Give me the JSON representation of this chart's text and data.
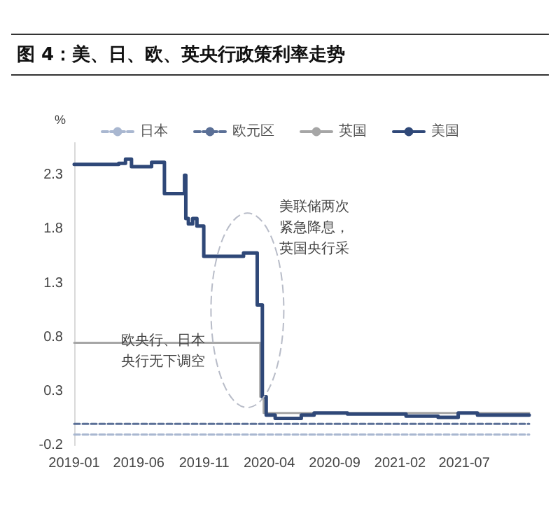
{
  "chart_data": {
    "type": "step",
    "title": "图 4：美、日、欧、英央行政策利率走势",
    "ylabel": "%",
    "annotations": [
      "欧央行、日本央行无下调空",
      "美联储两次紧急降息，英国央行采"
    ],
    "xlim": [
      "2019-01-01",
      "2021-11-30"
    ],
    "xticks": [
      "2019-01",
      "2019-06",
      "2019-11",
      "2020-04",
      "2020-09",
      "2021-02",
      "2021-07"
    ],
    "ylim": [
      -0.2,
      2.6
    ],
    "yticks": [
      -0.2,
      0.3,
      0.8,
      1.3,
      1.8,
      2.3
    ],
    "grid": false,
    "legend": "top",
    "marker": "none",
    "series": [
      {
        "name": "日本",
        "color": "#a9b7d0",
        "line_style": "dashed",
        "x": [
          "2019-01-01",
          "2021-11-30"
        ],
        "values": [
          -0.1,
          -0.1
        ]
      },
      {
        "name": "欧元区",
        "color": "#5a6f96",
        "line_style": "dashed",
        "x": [
          "2019-01-01",
          "2021-11-30"
        ],
        "values": [
          0,
          0
        ]
      },
      {
        "name": "英国",
        "color": "#a6a6a6",
        "line_style": "solid",
        "x": [
          "2019-01-01",
          "2020-03-11",
          "2020-03-19",
          "2021-11-30"
        ],
        "values": [
          0.75,
          0.25,
          0.1,
          0.1
        ]
      },
      {
        "name": "美国",
        "color": "#2f4878",
        "line_style": "solid",
        "x": [
          "2019-01-01",
          "2019-04-15",
          "2019-05-01",
          "2019-05-15",
          "2019-06-15",
          "2019-07-01",
          "2019-07-31",
          "2019-09-16",
          "2019-09-19",
          "2019-09-25",
          "2019-10-05",
          "2019-10-15",
          "2019-10-31",
          "2020-02-01",
          "2020-03-04",
          "2020-03-16",
          "2020-03-25",
          "2020-04-15",
          "2020-06-15",
          "2020-07-15",
          "2020-10-01",
          "2021-01-01",
          "2021-02-15",
          "2021-05-01",
          "2021-06-17",
          "2021-08-01",
          "2021-11-30"
        ],
        "values": [
          2.4,
          2.41,
          2.45,
          2.38,
          2.38,
          2.42,
          2.13,
          2.3,
          1.9,
          1.85,
          1.9,
          1.83,
          1.55,
          1.58,
          1.1,
          0.25,
          0.08,
          0.05,
          0.08,
          0.1,
          0.09,
          0.09,
          0.07,
          0.06,
          0.1,
          0.08,
          0.08
        ]
      }
    ]
  }
}
